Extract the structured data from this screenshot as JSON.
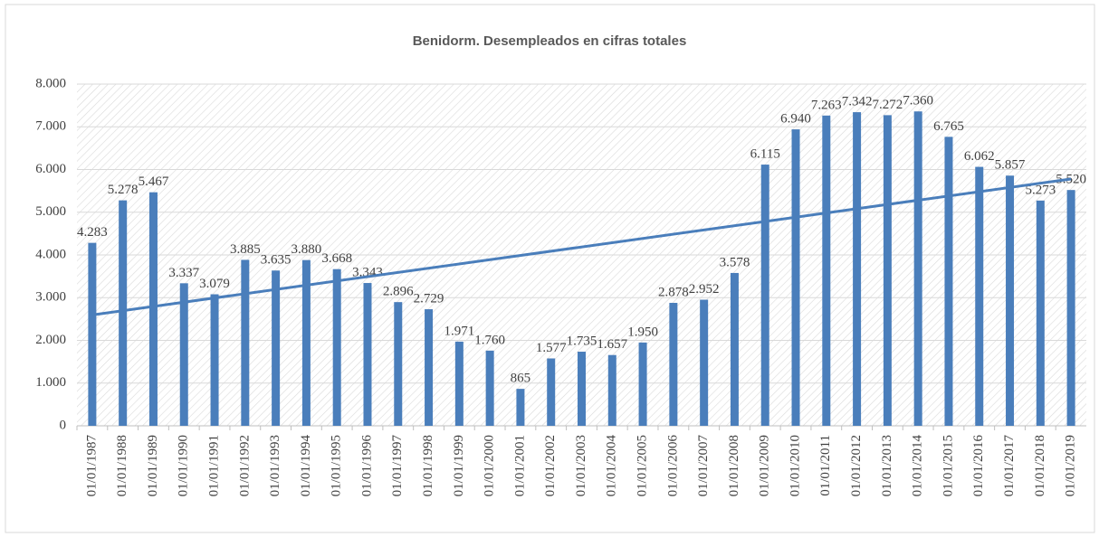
{
  "chart_data": {
    "type": "bar",
    "title": "Benidorm. Desempleados en cifras totales",
    "categories": [
      "01/01/1987",
      "01/01/1988",
      "01/01/1989",
      "01/01/1990",
      "01/01/1991",
      "01/01/1992",
      "01/01/1993",
      "01/01/1994",
      "01/01/1995",
      "01/01/1996",
      "01/01/1997",
      "01/01/1998",
      "01/01/1999",
      "01/01/2000",
      "01/01/2001",
      "01/01/2002",
      "01/01/2003",
      "01/01/2004",
      "01/01/2005",
      "01/01/2006",
      "01/01/2007",
      "01/01/2008",
      "01/01/2009",
      "01/01/2010",
      "01/01/2011",
      "01/01/2012",
      "01/01/2013",
      "01/01/2014",
      "01/01/2015",
      "01/01/2016",
      "01/01/2017",
      "01/01/2018",
      "01/01/2019"
    ],
    "values": [
      4283,
      5278,
      5467,
      3337,
      3079,
      3885,
      3635,
      3880,
      3668,
      3343,
      2896,
      2729,
      1971,
      1760,
      865,
      1577,
      1735,
      1657,
      1950,
      2878,
      2952,
      3578,
      6115,
      6940,
      7263,
      7342,
      7272,
      7360,
      6765,
      6062,
      5857,
      5273,
      5520
    ],
    "value_labels": [
      "4.283",
      "5.278",
      "5.467",
      "3.337",
      "3.079",
      "3.885",
      "3.635",
      "3.880",
      "3.668",
      "3.343",
      "2.896",
      "2.729",
      "1.971",
      "1.760",
      "865",
      "1.577",
      "1.735",
      "1.657",
      "1.950",
      "2.878",
      "2.952",
      "3.578",
      "6.115",
      "6.940",
      "7.263",
      "7.342",
      "7.272",
      "7.360",
      "6.765",
      "6.062",
      "5.857",
      "5.273",
      "5.520"
    ],
    "color": "#4a7ebb",
    "trendline": "linear",
    "ylim": [
      0,
      8000
    ],
    "yticks": [
      0,
      {
        "value": 1000,
        "label": "1.000"
      },
      {
        "value": 2000,
        "label": "2.000"
      },
      {
        "value": 3000,
        "label": "3.000"
      },
      {
        "value": 4000,
        "label": "4.000"
      },
      {
        "value": 5000,
        "label": "5.000"
      },
      {
        "value": 6000,
        "label": "6.000"
      },
      {
        "value": 7000,
        "label": "7.000"
      },
      {
        "value": 8000,
        "label": "8.000"
      }
    ],
    "grid": true
  }
}
